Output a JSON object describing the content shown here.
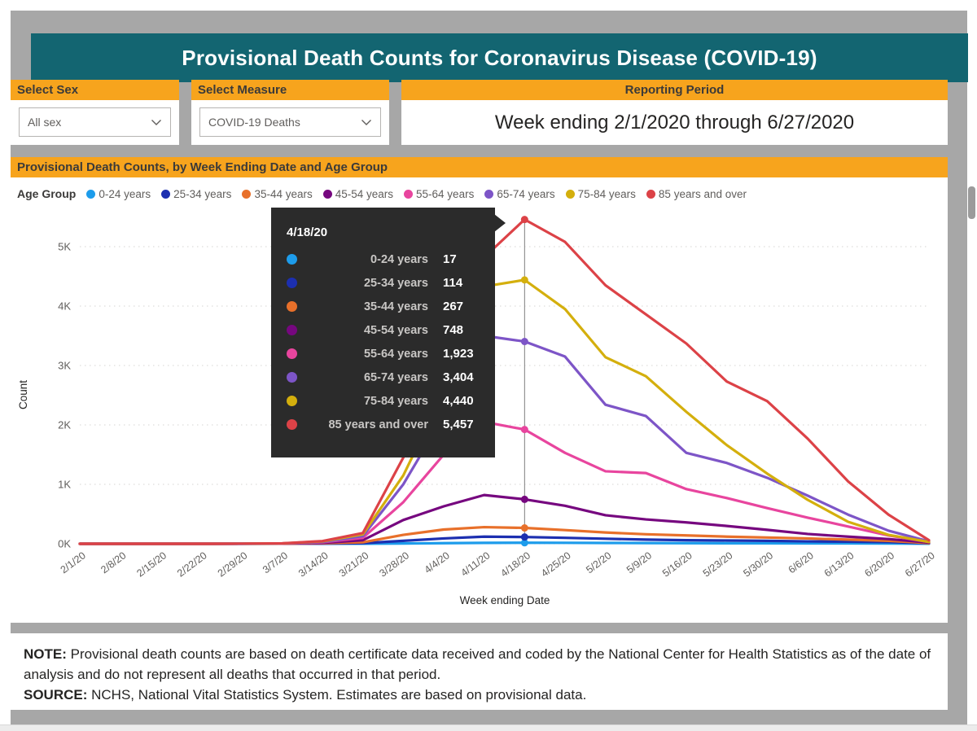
{
  "header": {
    "title": "Provisional Death Counts for Coronavirus Disease (COVID-19)"
  },
  "filters": {
    "sex": {
      "label": "Select Sex",
      "value": "All sex"
    },
    "measure": {
      "label": "Select Measure",
      "value": "COVID-19 Deaths"
    },
    "period": {
      "label": "Reporting Period",
      "value": "Week ending 2/1/2020 through 6/27/2020"
    }
  },
  "chart_panel": {
    "title": "Provisional Death Counts, by Week Ending Date and Age Group",
    "legend_title": "Age Group"
  },
  "chart_data": {
    "type": "line",
    "title": "Provisional Death Counts, by Week Ending Date and Age Group",
    "xlabel": "Week ending Date",
    "ylabel": "Count",
    "ylim": [
      0,
      5500
    ],
    "yticks": [
      "0K",
      "1K",
      "2K",
      "3K",
      "4K",
      "5K"
    ],
    "grid": "horizontal-dotted",
    "legend_position": "top",
    "x": [
      "2/1/20",
      "2/8/20",
      "2/15/20",
      "2/22/20",
      "2/29/20",
      "3/7/20",
      "3/14/20",
      "3/21/20",
      "3/28/20",
      "4/4/20",
      "4/11/20",
      "4/18/20",
      "4/25/20",
      "5/2/20",
      "5/9/20",
      "5/16/20",
      "5/23/20",
      "5/30/20",
      "6/6/20",
      "6/13/20",
      "6/20/20",
      "6/27/20"
    ],
    "highlight": {
      "x_index": 11,
      "x_label": "4/18/20"
    },
    "series": [
      {
        "name": "0-24 years",
        "color": "#1D9CEB",
        "values": [
          0,
          0,
          0,
          0,
          0,
          1,
          1,
          2,
          5,
          10,
          15,
          17,
          16,
          14,
          12,
          10,
          9,
          8,
          7,
          6,
          5,
          2
        ]
      },
      {
        "name": "25-34 years",
        "color": "#1C2FB0",
        "values": [
          0,
          0,
          0,
          0,
          0,
          1,
          3,
          10,
          50,
          90,
          120,
          114,
          100,
          85,
          70,
          60,
          55,
          50,
          40,
          35,
          28,
          8
        ]
      },
      {
        "name": "35-44 years",
        "color": "#E8702A",
        "values": [
          0,
          0,
          0,
          0,
          1,
          2,
          8,
          25,
          150,
          240,
          280,
          267,
          230,
          190,
          160,
          140,
          120,
          105,
          90,
          70,
          50,
          12
        ]
      },
      {
        "name": "45-54 years",
        "color": "#76077F",
        "values": [
          0,
          0,
          0,
          0,
          1,
          3,
          15,
          60,
          400,
          630,
          820,
          748,
          640,
          480,
          410,
          360,
          300,
          235,
          165,
          120,
          80,
          20
        ]
      },
      {
        "name": "55-64 years",
        "color": "#E8459E",
        "values": [
          0,
          0,
          0,
          0,
          1,
          5,
          25,
          100,
          700,
          1500,
          2050,
          1923,
          1530,
          1220,
          1190,
          920,
          770,
          600,
          440,
          290,
          140,
          30
        ]
      },
      {
        "name": "65-74 years",
        "color": "#7D55C7",
        "values": [
          0,
          0,
          0,
          0,
          1,
          6,
          30,
          130,
          1000,
          2150,
          3500,
          3404,
          3150,
          2340,
          2150,
          1530,
          1360,
          1110,
          810,
          490,
          220,
          40
        ]
      },
      {
        "name": "75-84 years",
        "color": "#D4AF0D",
        "values": [
          0,
          0,
          0,
          0,
          1,
          6,
          40,
          160,
          1150,
          2550,
          4330,
          4440,
          3950,
          3140,
          2820,
          2220,
          1660,
          1180,
          740,
          370,
          150,
          30
        ]
      },
      {
        "name": "85 years and over",
        "color": "#DC4247",
        "values": [
          0,
          0,
          0,
          0,
          1,
          8,
          45,
          180,
          1450,
          3100,
          4820,
          5457,
          5080,
          4350,
          3860,
          3370,
          2730,
          2400,
          1770,
          1050,
          490,
          60
        ]
      }
    ]
  },
  "tooltip": {
    "date": "4/18/20",
    "rows": [
      {
        "label": "0-24 years",
        "value": "17"
      },
      {
        "label": "25-34 years",
        "value": "114"
      },
      {
        "label": "35-44 years",
        "value": "267"
      },
      {
        "label": "45-54 years",
        "value": "748"
      },
      {
        "label": "55-64 years",
        "value": "1,923"
      },
      {
        "label": "65-74 years",
        "value": "3,404"
      },
      {
        "label": "75-84 years",
        "value": "4,440"
      },
      {
        "label": "85 years and over",
        "value": "5,457"
      }
    ]
  },
  "notes": {
    "note_label": "NOTE:",
    "note_text": " Provisional death counts are based on death certificate data received and coded by the National Center for Health Statistics as of the date of analysis and do not represent all deaths that occurred in that period.",
    "source_label": "SOURCE:",
    "source_text": " NCHS, National Vital Statistics System. Estimates are based on provisional data."
  }
}
